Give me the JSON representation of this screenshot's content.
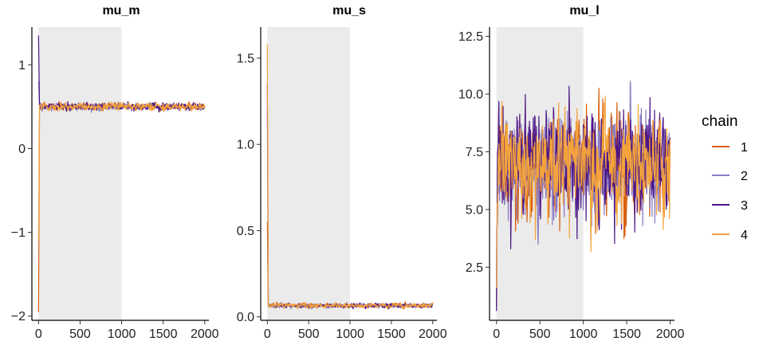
{
  "chart_data": [
    {
      "type": "line",
      "title": "mu_m",
      "xlabel": "",
      "ylabel": "",
      "xlim": [
        -80,
        2050
      ],
      "ylim": [
        -2.05,
        1.45
      ],
      "x_ticks": [
        0,
        500,
        1000,
        1500,
        2000
      ],
      "x_tick_labels": [
        "0",
        "500",
        "1000",
        "1500",
        "2000"
      ],
      "y_ticks": [
        -2,
        -1,
        0,
        1
      ],
      "y_tick_labels": [
        "−2",
        "−1",
        "0",
        "1"
      ],
      "warmup_shade": [
        0,
        1000
      ],
      "grid": false,
      "series": [
        {
          "name": "1",
          "color": "#D95F0E",
          "start": -1.95,
          "mean": 0.5,
          "spread": 0.02
        },
        {
          "name": "2",
          "color": "#8C7DC4",
          "start": 0.8,
          "mean": 0.5,
          "spread": 0.02
        },
        {
          "name": "3",
          "color": "#4A1486",
          "start": 1.35,
          "mean": 0.5,
          "spread": 0.02
        },
        {
          "name": "4",
          "color": "#F3A33C",
          "start": -1.1,
          "mean": 0.5,
          "spread": 0.02
        }
      ]
    },
    {
      "type": "line",
      "title": "mu_s",
      "xlabel": "",
      "ylabel": "",
      "xlim": [
        -80,
        2050
      ],
      "ylim": [
        -0.02,
        1.68
      ],
      "x_ticks": [
        0,
        500,
        1000,
        1500,
        2000
      ],
      "x_tick_labels": [
        "0",
        "500",
        "1000",
        "1500",
        "2000"
      ],
      "y_ticks": [
        0.0,
        0.5,
        1.0,
        1.5
      ],
      "y_tick_labels": [
        "0.0",
        "0.5",
        "1.0",
        "1.5"
      ],
      "warmup_shade": [
        0,
        1000
      ],
      "grid": false,
      "series": [
        {
          "name": "1",
          "color": "#D95F0E",
          "start": 0.55,
          "mean": 0.065,
          "spread": 0.006
        },
        {
          "name": "2",
          "color": "#8C7DC4",
          "start": 1.2,
          "mean": 0.065,
          "spread": 0.006
        },
        {
          "name": "3",
          "color": "#4A1486",
          "start": 1.35,
          "mean": 0.065,
          "spread": 0.006
        },
        {
          "name": "4",
          "color": "#F3A33C",
          "start": 1.58,
          "mean": 0.065,
          "spread": 0.006
        }
      ]
    },
    {
      "type": "line",
      "title": "mu_l",
      "xlabel": "",
      "ylabel": "",
      "xlim": [
        -80,
        2050
      ],
      "ylim": [
        0.2,
        12.9
      ],
      "x_ticks": [
        0,
        500,
        1000,
        1500,
        2000
      ],
      "x_tick_labels": [
        "0",
        "500",
        "1000",
        "1500",
        "2000"
      ],
      "y_ticks": [
        2.5,
        5.0,
        7.5,
        10.0,
        12.5
      ],
      "y_tick_labels": [
        "2.5",
        "5.0",
        "7.5",
        "10.0",
        "12.5"
      ],
      "warmup_shade": [
        0,
        1000
      ],
      "grid": false,
      "series": [
        {
          "name": "1",
          "color": "#D95F0E",
          "start": 0.8,
          "mean": 6.9,
          "spread": 1.0
        },
        {
          "name": "2",
          "color": "#8C7DC4",
          "start": 1.2,
          "mean": 6.9,
          "spread": 1.0
        },
        {
          "name": "3",
          "color": "#4A1486",
          "start": 0.6,
          "mean": 6.9,
          "spread": 1.0
        },
        {
          "name": "4",
          "color": "#F3A33C",
          "start": 1.6,
          "mean": 6.9,
          "spread": 1.0
        }
      ]
    }
  ],
  "legend": {
    "title": "chain",
    "placement": "right",
    "entries": [
      {
        "label": "1",
        "color": "#D95F0E"
      },
      {
        "label": "2",
        "color": "#8C7DC4"
      },
      {
        "label": "3",
        "color": "#4A1486"
      },
      {
        "label": "4",
        "color": "#F3A33C"
      }
    ]
  }
}
